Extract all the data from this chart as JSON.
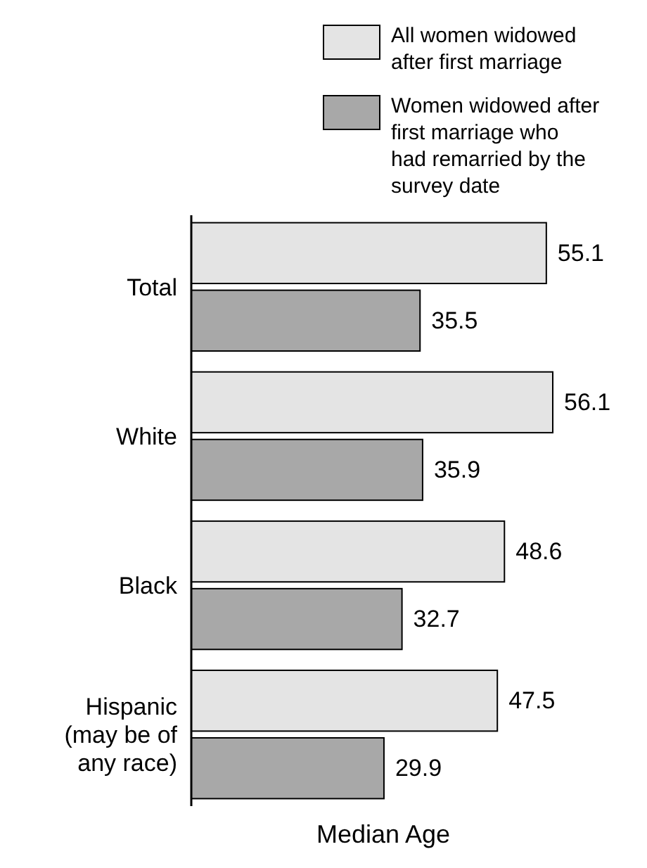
{
  "chart_data": {
    "type": "bar",
    "orientation": "horizontal",
    "xlabel": "Median Age",
    "categories": [
      "Total",
      "White",
      "Black",
      "Hispanic (may be of any race)"
    ],
    "series": [
      {
        "name": "All women widowed after first marriage",
        "color": "#e4e4e4",
        "values": [
          55.1,
          56.1,
          48.6,
          47.5
        ]
      },
      {
        "name": "Women widowed after first marriage who had remarried by the survey date",
        "color": "#a8a8a8",
        "values": [
          35.5,
          35.9,
          32.7,
          29.9
        ]
      }
    ],
    "data_labels": true,
    "legend": "top right",
    "grid": false
  }
}
